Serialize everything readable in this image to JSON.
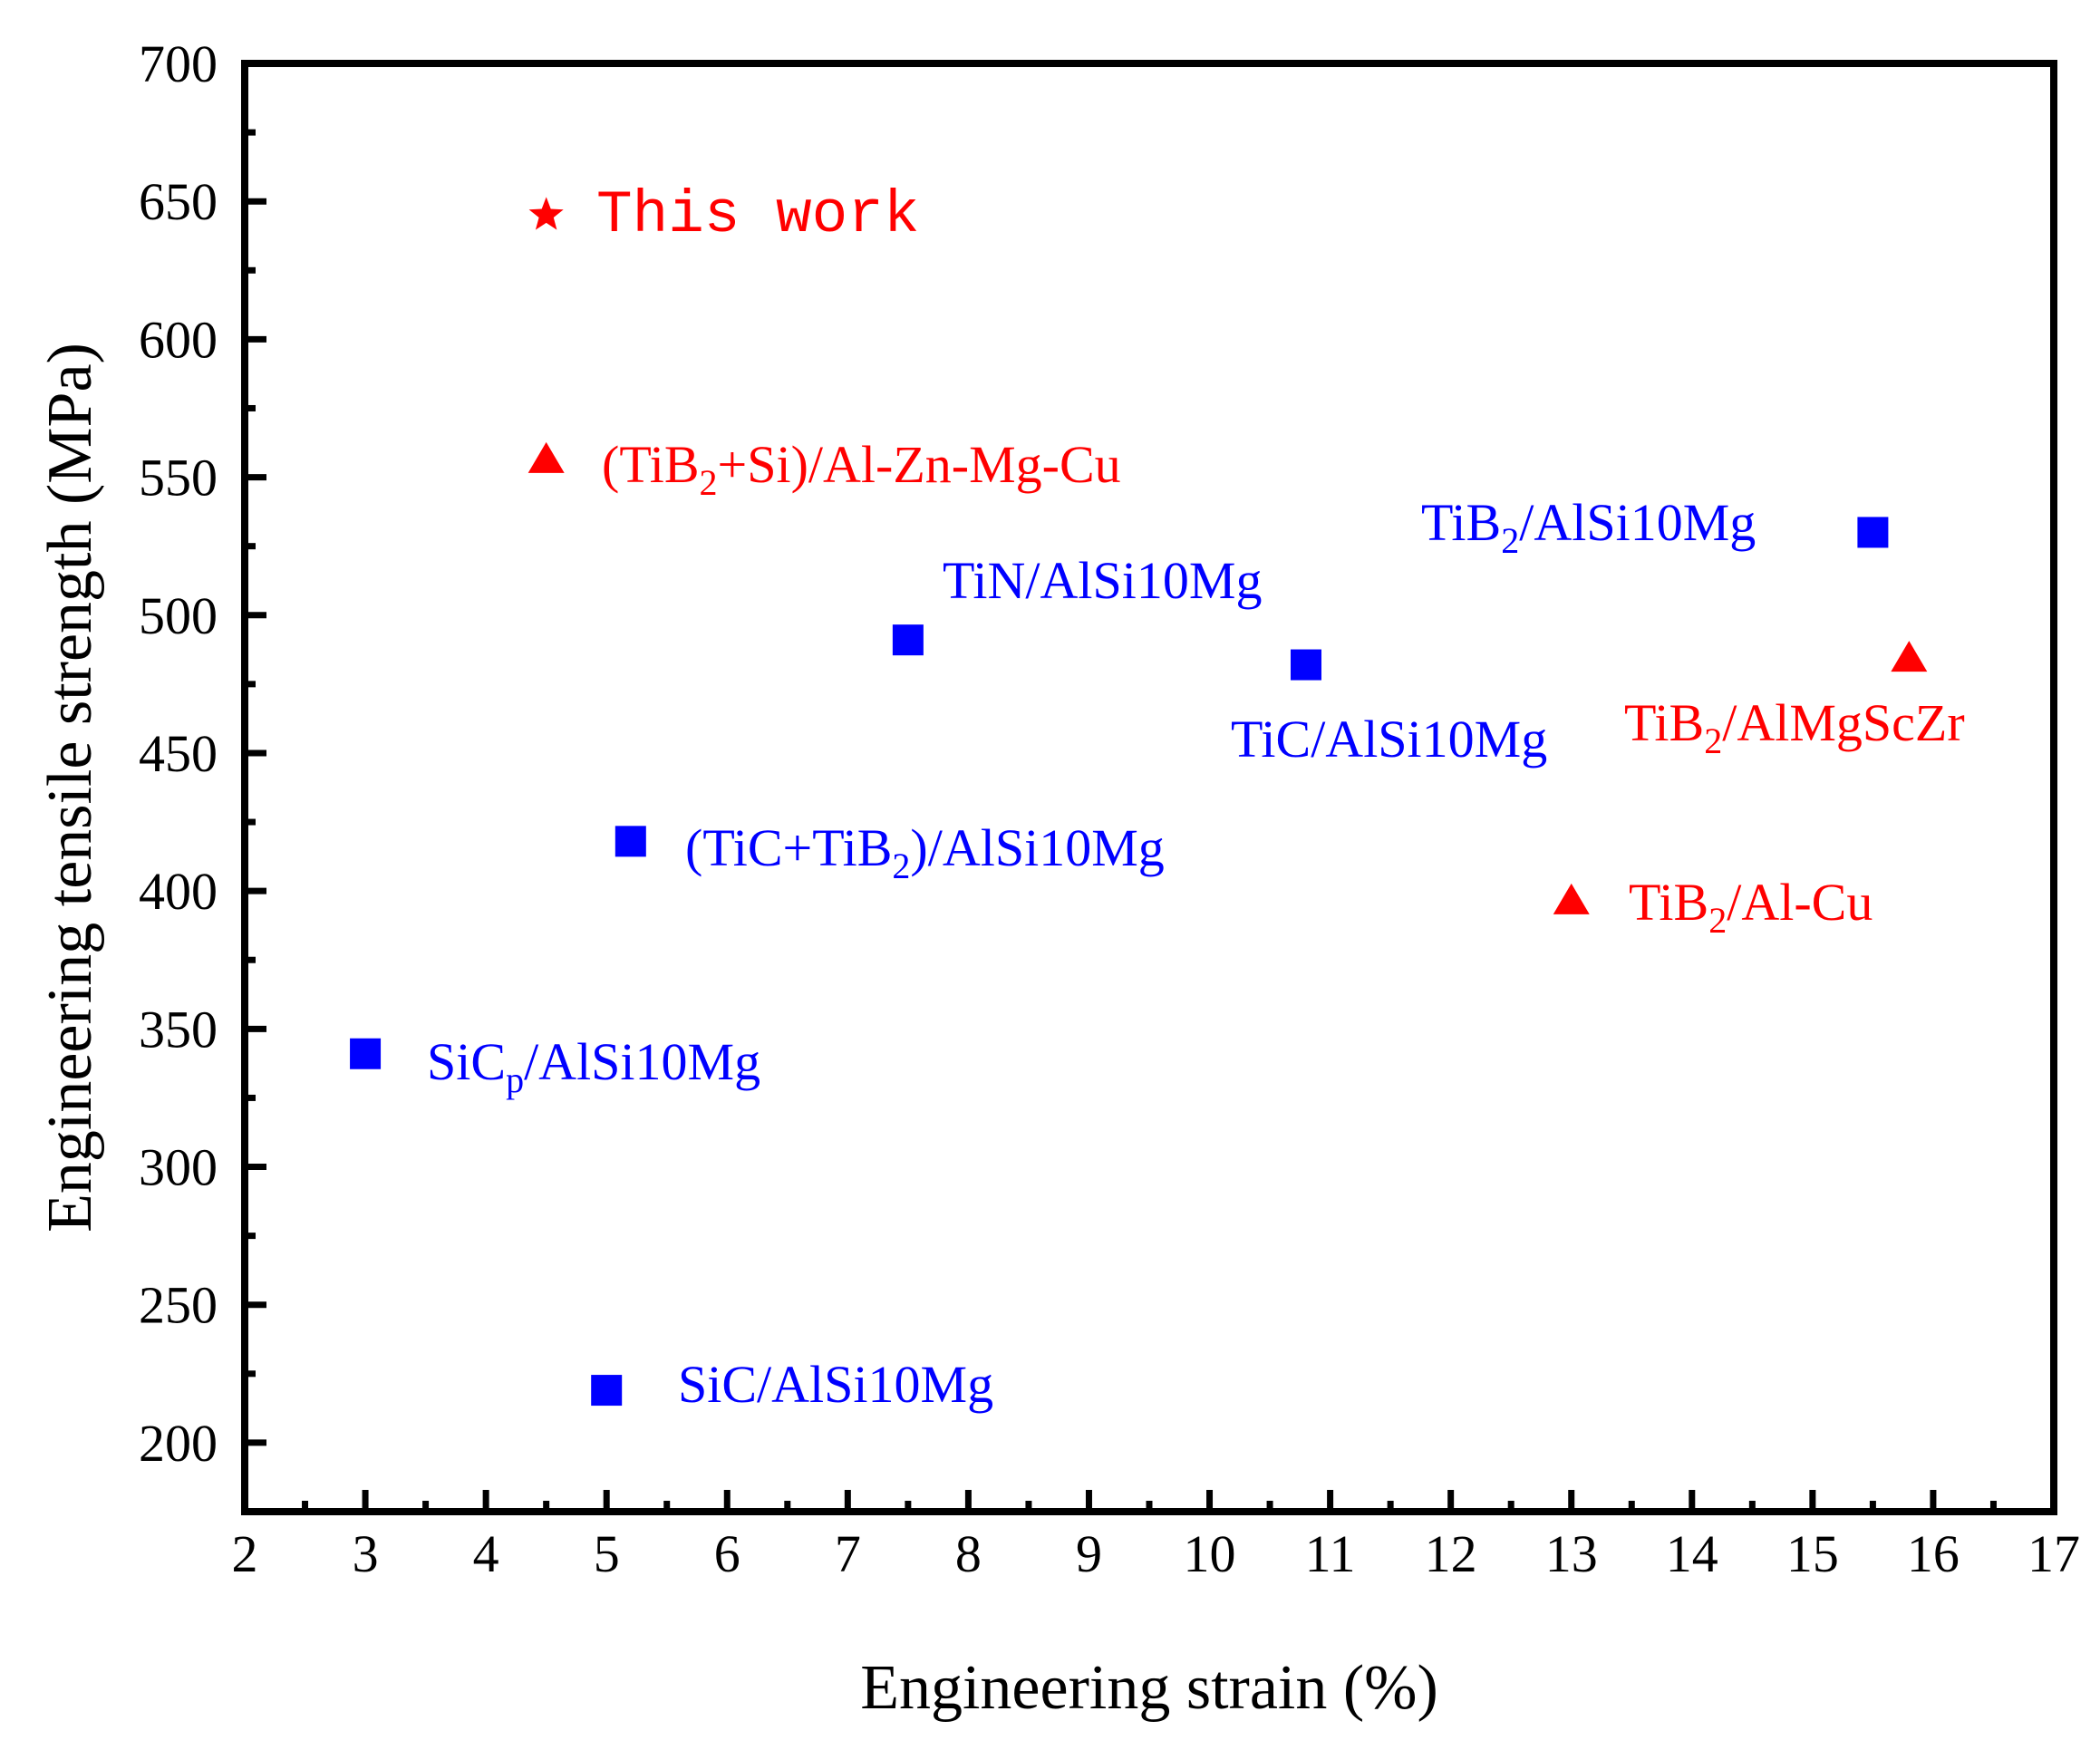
{
  "chart_data": {
    "type": "scatter",
    "title": "",
    "xlabel": "Engineering strain (%)",
    "ylabel": "Engineering tensile strength (MPa)",
    "xlim": [
      2,
      17
    ],
    "ylim": [
      175,
      700
    ],
    "x_ticks": [
      "2",
      "3",
      "4",
      "5",
      "6",
      "7",
      "8",
      "9",
      "10",
      "11",
      "12",
      "13",
      "14",
      "15",
      "16",
      "17"
    ],
    "y_ticks": [
      "200",
      "250",
      "300",
      "350",
      "400",
      "450",
      "500",
      "550",
      "600",
      "650",
      "700"
    ],
    "grid": false,
    "colors": {
      "red": "#ff0000",
      "blue": "#0000ff",
      "axis": "#000000"
    },
    "points": [
      {
        "name": "This work",
        "label": "This work",
        "x": 4.5,
        "y": 645,
        "marker": "star",
        "color": "#ff0000"
      },
      {
        "name": "(TiB2+Si)/Al-Zn-Mg-Cu",
        "label": "(TiB2+Si)/Al-Zn-Mg-Cu",
        "x": 4.5,
        "y": 556,
        "marker": "triangle",
        "color": "#ff0000"
      },
      {
        "name": "TiB2/AlSi10Mg",
        "label": "TiB2/AlSi10Mg",
        "x": 15.5,
        "y": 530,
        "marker": "square",
        "color": "#0000ff"
      },
      {
        "name": "TiN/AlSi10Mg",
        "label": "TiN/AlSi10Mg",
        "x": 7.5,
        "y": 491,
        "marker": "square",
        "color": "#0000ff"
      },
      {
        "name": "TiC/AlSi10Mg",
        "label": "TiC/AlSi10Mg",
        "x": 10.8,
        "y": 482,
        "marker": "square",
        "color": "#0000ff"
      },
      {
        "name": "TiB2/AlMgScZr",
        "label": "TiB2/AlMgScZr",
        "x": 15.8,
        "y": 484,
        "marker": "triangle",
        "color": "#ff0000"
      },
      {
        "name": "(TiC+TiB2)/AlSi10Mg",
        "label": "(TiC+TiB2)/AlSi10Mg",
        "x": 5.2,
        "y": 418,
        "marker": "square",
        "color": "#0000ff"
      },
      {
        "name": "TiB2/Al-Cu",
        "label": "TiB2/Al-Cu",
        "x": 13.0,
        "y": 396,
        "marker": "triangle",
        "color": "#ff0000"
      },
      {
        "name": "SiCp/AlSi10Mg",
        "label": "SiCp/AlSi10Mg",
        "x": 3.0,
        "y": 341,
        "marker": "square",
        "color": "#0000ff"
      },
      {
        "name": "SiC/AlSi10Mg",
        "label": "SiC/AlSi10Mg",
        "x": 5.0,
        "y": 219,
        "marker": "square",
        "color": "#0000ff"
      }
    ]
  }
}
